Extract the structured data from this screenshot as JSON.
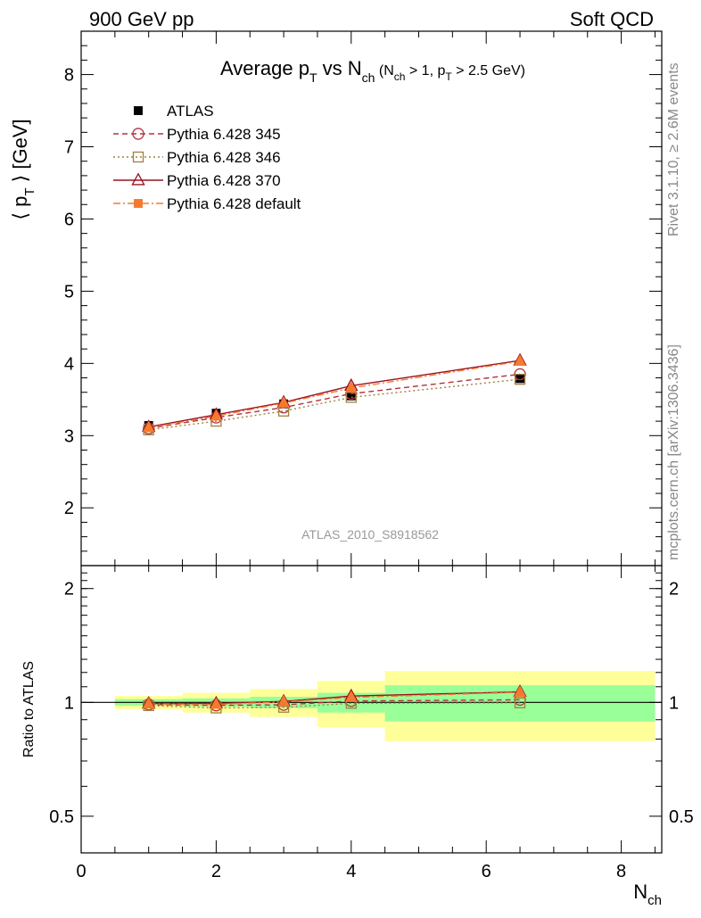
{
  "header": {
    "left": "900 GeV pp",
    "right": "Soft QCD"
  },
  "side": {
    "rivet": "Rivet 3.1.10, ≥ 2.6M events",
    "mcplots": "mcplots.cern.ch [arXiv:1306.3436]"
  },
  "watermark": "ATLAS_2010_S8918562",
  "chart_data": {
    "type": "line",
    "title": {
      "main": "Average p",
      "main_sub": "T",
      "mid": " vs N",
      "mid_sub": "ch",
      "cond_a": " (N",
      "cond_a_sub": "ch",
      "cond_b": " > 1, p",
      "cond_b_sub": "T",
      "cond_c": " > 2.5 GeV)"
    },
    "ylabel": {
      "open": "⟨ p",
      "sub": "T",
      "close": " ⟩  [GeV]"
    },
    "ratio_ylabel": "Ratio to ATLAS",
    "xlabel": {
      "main": "N",
      "sub": "ch"
    },
    "xlim": [
      0,
      8.6
    ],
    "ylim_main": [
      1.2,
      8.6
    ],
    "ylim_ratio": [
      0.4,
      2.3
    ],
    "ratio_scale": "log",
    "x_ticks": [
      "0",
      "2",
      "4",
      "6",
      "8"
    ],
    "y_ticks_main": [
      "2",
      "3",
      "4",
      "5",
      "6",
      "7",
      "8"
    ],
    "y_ticks_ratio": [
      "0.5",
      "1",
      "2"
    ],
    "x": [
      1,
      2,
      3,
      4,
      6.5
    ],
    "bins": [
      [
        0.5,
        1.5
      ],
      [
        1.5,
        2.5
      ],
      [
        2.5,
        3.5
      ],
      [
        3.5,
        4.5
      ],
      [
        4.5,
        8.5
      ]
    ],
    "data": {
      "name": "ATLAS",
      "values": [
        3.14,
        3.31,
        3.44,
        3.55,
        3.79
      ]
    },
    "band_inner": [
      0.02,
      0.025,
      0.035,
      0.06,
      0.11
    ],
    "band_outer": [
      0.04,
      0.06,
      0.085,
      0.14,
      0.21
    ],
    "series": [
      {
        "name": "Pythia 6.428 345",
        "color": "#b5303d",
        "dash": "6,4",
        "marker": "open-circle",
        "values": [
          3.1,
          3.25,
          3.39,
          3.58,
          3.85
        ]
      },
      {
        "name": "Pythia 6.428 346",
        "color": "#a08040",
        "dash": "2,3",
        "marker": "open-square",
        "values": [
          3.08,
          3.2,
          3.34,
          3.53,
          3.78
        ]
      },
      {
        "name": "Pythia 6.428 370",
        "color": "#9a1020",
        "dash": "",
        "marker": "open-triangle",
        "values": [
          3.12,
          3.29,
          3.46,
          3.69,
          4.04
        ]
      },
      {
        "name": "Pythia 6.428 default",
        "color": "#f57a2e",
        "dash": "8,3,2,3",
        "marker": "filled-square",
        "values": [
          3.11,
          3.27,
          3.45,
          3.66,
          4.03
        ]
      }
    ],
    "legend_position": "top-left",
    "colors": {
      "band_inner": "#99ff99",
      "band_outer": "#ffff99",
      "data": "#000000"
    }
  }
}
